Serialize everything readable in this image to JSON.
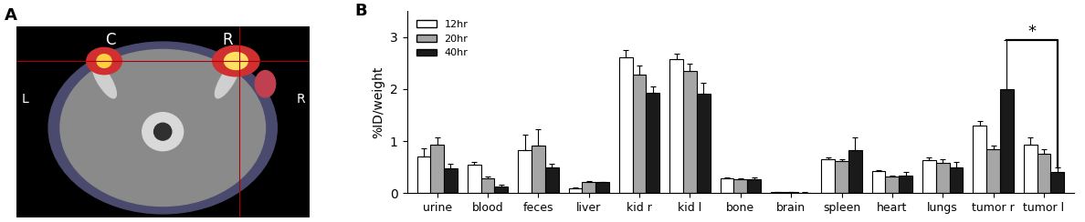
{
  "panel_a": {
    "label": "A",
    "texts": [
      "C",
      "R",
      "L",
      "R"
    ]
  },
  "chart_data": {
    "type": "bar",
    "title": "B",
    "y_label": "%ID/weight",
    "categories": [
      "urine",
      "blood",
      "feces",
      "liver",
      "kid r",
      "kid l",
      "bone",
      "brain",
      "spleen",
      "heart",
      "lungs",
      "tumor r",
      "tumor l"
    ],
    "series": [
      {
        "name": "12hr",
        "color": "#ffffff",
        "values": [
          0.7,
          0.55,
          0.83,
          0.1,
          2.62,
          2.58,
          0.28,
          0.02,
          0.66,
          0.42,
          0.64,
          1.3,
          0.93
        ],
        "errors": [
          0.17,
          0.05,
          0.3,
          0.01,
          0.13,
          0.1,
          0.02,
          0.005,
          0.02,
          0.03,
          0.05,
          0.08,
          0.15
        ]
      },
      {
        "name": "20hr",
        "color": "#a6a6a6",
        "values": [
          0.93,
          0.29,
          0.91,
          0.22,
          2.28,
          2.35,
          0.26,
          0.02,
          0.62,
          0.32,
          0.58,
          0.85,
          0.75
        ],
        "errors": [
          0.14,
          0.03,
          0.32,
          0.02,
          0.17,
          0.14,
          0.03,
          0.005,
          0.04,
          0.02,
          0.08,
          0.07,
          0.1
        ]
      },
      {
        "name": "40hr",
        "color": "#1a1a1a",
        "values": [
          0.47,
          0.12,
          0.5,
          0.21,
          1.93,
          1.92,
          0.27,
          0.01,
          0.82,
          0.34,
          0.5,
          2.0,
          0.4
        ],
        "errors": [
          0.1,
          0.05,
          0.06,
          0.01,
          0.13,
          0.2,
          0.04,
          0.005,
          0.25,
          0.06,
          0.1,
          0.95,
          0.1
        ]
      }
    ],
    "ylim": [
      0,
      3.5
    ],
    "yticks": [
      0,
      1,
      2,
      3
    ],
    "legend": "upper left",
    "annotations": [
      "*"
    ]
  }
}
